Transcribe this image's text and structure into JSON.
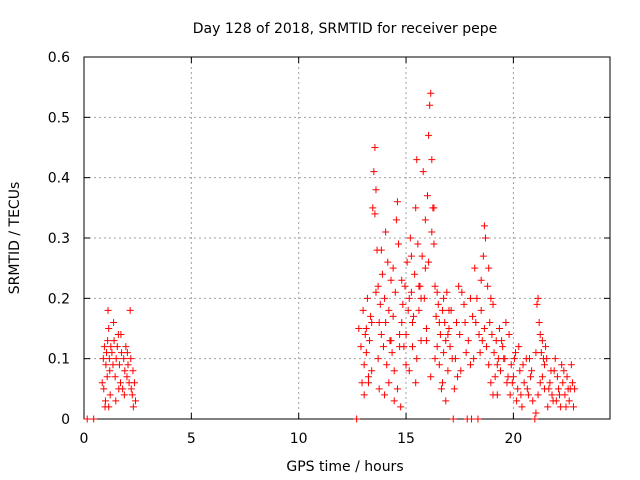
{
  "chart_data": {
    "type": "scatter",
    "title": "Day 128 of 2018, SRMTID for receiver pepe",
    "xlabel": "GPS time / hours",
    "ylabel": "SRMTID / TECUs",
    "xlim": [
      0,
      24.5
    ],
    "ylim": [
      0,
      0.6
    ],
    "xticks": [
      0,
      5,
      10,
      15,
      20
    ],
    "yticks": [
      0,
      0.1,
      0.2,
      0.3,
      0.4,
      0.5,
      0.6
    ],
    "xtick_labels": [
      "0",
      "5",
      "10",
      "15",
      "20"
    ],
    "ytick_labels": [
      "0",
      "0.1",
      "0.2",
      "0.3",
      "0.4",
      "0.5",
      "0.6"
    ],
    "grid": true,
    "marker": "+",
    "color": "#ff0000",
    "series": [
      {
        "name": "SRMTID",
        "points": [
          [
            0.15,
            0
          ],
          [
            0.45,
            0
          ],
          [
            0.85,
            0.06
          ],
          [
            0.9,
            0.1
          ],
          [
            0.95,
            0.12
          ],
          [
            1.0,
            0.03
          ],
          [
            1.02,
            0.09
          ],
          [
            1.05,
            0.11
          ],
          [
            1.08,
            0.07
          ],
          [
            1.1,
            0.13
          ],
          [
            1.12,
            0.18
          ],
          [
            1.15,
            0.15
          ],
          [
            1.18,
            0.1
          ],
          [
            1.2,
            0.08
          ],
          [
            1.25,
            0.12
          ],
          [
            1.3,
            0.11
          ],
          [
            1.35,
            0.09
          ],
          [
            1.4,
            0.13
          ],
          [
            1.45,
            0.07
          ],
          [
            1.5,
            0.1
          ],
          [
            1.55,
            0.12
          ],
          [
            1.6,
            0.14
          ],
          [
            1.65,
            0.09
          ],
          [
            1.7,
            0.06
          ],
          [
            1.75,
            0.11
          ],
          [
            1.8,
            0.05
          ],
          [
            1.85,
            0.1
          ],
          [
            1.9,
            0.08
          ],
          [
            1.95,
            0.12
          ],
          [
            2.0,
            0.07
          ],
          [
            2.05,
            0.09
          ],
          [
            2.1,
            0.06
          ],
          [
            2.15,
            0.18
          ],
          [
            2.2,
            0.05
          ],
          [
            2.25,
            0.04
          ],
          [
            2.3,
            0.02
          ],
          [
            2.35,
            0.06
          ],
          [
            2.4,
            0.03
          ],
          [
            0.92,
            0.05
          ],
          [
            1.22,
            0.04
          ],
          [
            1.62,
            0.05
          ],
          [
            1.88,
            0.04
          ],
          [
            2.02,
            0.11
          ],
          [
            2.18,
            0.1
          ],
          [
            2.28,
            0.08
          ],
          [
            1.38,
            0.16
          ],
          [
            1.72,
            0.14
          ],
          [
            1.48,
            0.03
          ],
          [
            0.98,
            0.02
          ],
          [
            1.15,
            0.02
          ],
          [
            12.7,
            0
          ],
          [
            12.8,
            0.15
          ],
          [
            12.9,
            0.12
          ],
          [
            13.0,
            0.18
          ],
          [
            13.05,
            0.09
          ],
          [
            13.1,
            0.14
          ],
          [
            13.15,
            0.11
          ],
          [
            13.2,
            0.2
          ],
          [
            13.25,
            0.06
          ],
          [
            13.3,
            0.13
          ],
          [
            13.35,
            0.17
          ],
          [
            13.4,
            0.08
          ],
          [
            13.45,
            0.35
          ],
          [
            13.5,
            0.41
          ],
          [
            13.55,
            0.45
          ],
          [
            13.6,
            0.38
          ],
          [
            13.65,
            0.28
          ],
          [
            13.7,
            0.22
          ],
          [
            13.75,
            0.16
          ],
          [
            13.8,
            0.19
          ],
          [
            13.85,
            0.14
          ],
          [
            13.9,
            0.24
          ],
          [
            13.95,
            0.12
          ],
          [
            14.0,
            0.2
          ],
          [
            14.05,
            0.16
          ],
          [
            14.1,
            0.09
          ],
          [
            14.15,
            0.26
          ],
          [
            14.2,
            0.18
          ],
          [
            14.25,
            0.13
          ],
          [
            14.3,
            0.23
          ],
          [
            14.35,
            0.11
          ],
          [
            14.4,
            0.17
          ],
          [
            14.45,
            0.08
          ],
          [
            14.5,
            0.21
          ],
          [
            14.55,
            0.33
          ],
          [
            14.6,
            0.36
          ],
          [
            14.65,
            0.29
          ],
          [
            14.7,
            0.14
          ],
          [
            14.75,
            0.02
          ],
          [
            14.8,
            0.16
          ],
          [
            14.85,
            0.19
          ],
          [
            14.9,
            0.12
          ],
          [
            14.95,
            0.22
          ],
          [
            15.0,
            0.14
          ],
          [
            15.05,
            0.26
          ],
          [
            15.1,
            0.18
          ],
          [
            15.15,
            0.08
          ],
          [
            15.2,
            0.3
          ],
          [
            15.25,
            0.21
          ],
          [
            15.3,
            0.12
          ],
          [
            15.35,
            0.17
          ],
          [
            15.4,
            0.24
          ],
          [
            15.45,
            0.35
          ],
          [
            15.5,
            0.43
          ],
          [
            15.55,
            0.29
          ],
          [
            15.6,
            0.18
          ],
          [
            15.65,
            0.22
          ],
          [
            15.7,
            0.13
          ],
          [
            15.75,
            0.27
          ],
          [
            15.8,
            0.41
          ],
          [
            15.85,
            0.2
          ],
          [
            15.9,
            0.33
          ],
          [
            15.95,
            0.15
          ],
          [
            16.0,
            0.37
          ],
          [
            16.05,
            0.47
          ],
          [
            16.1,
            0.52
          ],
          [
            16.15,
            0.54
          ],
          [
            16.2,
            0.43
          ],
          [
            16.25,
            0.35
          ],
          [
            16.3,
            0.29
          ],
          [
            16.35,
            0.22
          ],
          [
            16.4,
            0.17
          ],
          [
            16.45,
            0.12
          ],
          [
            16.5,
            0.19
          ],
          [
            16.55,
            0.09
          ],
          [
            16.6,
            0.14
          ],
          [
            16.65,
            0.05
          ],
          [
            16.7,
            0.18
          ],
          [
            16.75,
            0.11
          ],
          [
            16.8,
            0.16
          ],
          [
            16.85,
            0.13
          ],
          [
            16.9,
            0.21
          ],
          [
            16.95,
            0.08
          ],
          [
            17.0,
            0.15
          ],
          [
            17.05,
            0.12
          ],
          [
            17.1,
            0.18
          ],
          [
            17.2,
            0
          ],
          [
            17.3,
            0.1
          ],
          [
            17.4,
            0.07
          ],
          [
            17.5,
            0.14
          ],
          [
            17.6,
            0.21
          ],
          [
            17.7,
            0.19
          ],
          [
            17.8,
            0.11
          ],
          [
            17.85,
            0
          ],
          [
            17.9,
            0.13
          ],
          [
            18.0,
            0.09
          ],
          [
            18.05,
            0
          ],
          [
            18.1,
            0.17
          ],
          [
            18.2,
            0.25
          ],
          [
            18.3,
            0.2
          ],
          [
            18.35,
            0
          ],
          [
            18.4,
            0.14
          ],
          [
            18.5,
            0.18
          ],
          [
            18.6,
            0.27
          ],
          [
            18.65,
            0.32
          ],
          [
            18.7,
            0.3
          ],
          [
            18.75,
            0.12
          ],
          [
            18.8,
            0.22
          ],
          [
            18.85,
            0.09
          ],
          [
            18.9,
            0.16
          ],
          [
            18.95,
            0.06
          ],
          [
            19.0,
            0.14
          ],
          [
            19.05,
            0.19
          ],
          [
            19.1,
            0.11
          ],
          [
            19.15,
            0.07
          ],
          [
            19.2,
            0.13
          ],
          [
            19.25,
            0.04
          ],
          [
            19.3,
            0.1
          ],
          [
            19.35,
            0.15
          ],
          [
            19.4,
            0.08
          ],
          [
            19.5,
            0.12
          ],
          [
            19.6,
            0.1
          ],
          [
            19.7,
            0.06
          ],
          [
            19.8,
            0.14
          ],
          [
            19.9,
            0.09
          ],
          [
            20.0,
            0.07
          ],
          [
            20.1,
            0.11
          ],
          [
            20.2,
            0.05
          ],
          [
            20.3,
            0.08
          ],
          [
            20.4,
            0.02
          ],
          [
            20.5,
            0.06
          ],
          [
            20.6,
            0.1
          ],
          [
            20.7,
            0.04
          ],
          [
            20.8,
            0.07
          ],
          [
            20.9,
            0.03
          ],
          [
            21.0,
            0
          ],
          [
            21.05,
            0.01
          ],
          [
            21.1,
            0.19
          ],
          [
            21.15,
            0.2
          ],
          [
            21.2,
            0.16
          ],
          [
            21.25,
            0.14
          ],
          [
            21.3,
            0.11
          ],
          [
            21.35,
            0.07
          ],
          [
            21.4,
            0.1
          ],
          [
            21.45,
            0.05
          ],
          [
            21.5,
            0.12
          ],
          [
            21.6,
            0.02
          ],
          [
            21.7,
            0.06
          ],
          [
            21.8,
            0.04
          ],
          [
            21.9,
            0.08
          ],
          [
            21.95,
            0.1
          ],
          [
            22.0,
            0.03
          ],
          [
            22.1,
            0.05
          ],
          [
            22.2,
            0.02
          ],
          [
            22.3,
            0.06
          ],
          [
            22.4,
            0.04
          ],
          [
            22.5,
            0.07
          ],
          [
            22.6,
            0.03
          ],
          [
            22.7,
            0.09
          ],
          [
            22.75,
            0.06
          ],
          [
            22.8,
            0.02
          ],
          [
            22.85,
            0.05
          ],
          [
            13.25,
            0.07
          ],
          [
            13.4,
            0.16
          ],
          [
            13.55,
            0.34
          ],
          [
            13.7,
            0.1
          ],
          [
            13.85,
            0.28
          ],
          [
            14.05,
            0.31
          ],
          [
            14.2,
            0.06
          ],
          [
            14.4,
            0.25
          ],
          [
            14.6,
            0.05
          ],
          [
            14.8,
            0.23
          ],
          [
            15.0,
            0.09
          ],
          [
            15.15,
            0.2
          ],
          [
            15.3,
            0.16
          ],
          [
            15.5,
            0.1
          ],
          [
            15.7,
            0.2
          ],
          [
            15.9,
            0.25
          ],
          [
            16.05,
            0.26
          ],
          [
            16.2,
            0.31
          ],
          [
            16.35,
            0.1
          ],
          [
            16.55,
            0.16
          ],
          [
            16.75,
            0.2
          ],
          [
            16.95,
            0.14
          ],
          [
            17.15,
            0.1
          ],
          [
            17.35,
            0.16
          ],
          [
            17.55,
            0.08
          ],
          [
            17.75,
            0.16
          ],
          [
            18.0,
            0.2
          ],
          [
            18.15,
            0.1
          ],
          [
            18.45,
            0.11
          ],
          [
            18.65,
            0.15
          ],
          [
            18.85,
            0.25
          ],
          [
            19.05,
            0.04
          ],
          [
            19.25,
            0.09
          ],
          [
            19.45,
            0.13
          ],
          [
            19.65,
            0.16
          ],
          [
            19.85,
            0.04
          ],
          [
            20.05,
            0.1
          ],
          [
            20.25,
            0.12
          ],
          [
            20.45,
            0.09
          ],
          [
            20.65,
            0.05
          ],
          [
            20.85,
            0.08
          ],
          [
            21.05,
            0.11
          ],
          [
            21.25,
            0.06
          ],
          [
            21.45,
            0.09
          ],
          [
            21.65,
            0.05
          ],
          [
            21.85,
            0.03
          ],
          [
            22.05,
            0.07
          ],
          [
            22.25,
            0.09
          ],
          [
            22.45,
            0.02
          ],
          [
            22.65,
            0.05
          ],
          [
            12.95,
            0.06
          ],
          [
            13.15,
            0.15
          ],
          [
            13.6,
            0.21
          ],
          [
            14.0,
            0.04
          ],
          [
            14.3,
            0.13
          ],
          [
            14.7,
            0.12
          ],
          [
            15.25,
            0.27
          ],
          [
            15.6,
            0.22
          ],
          [
            15.95,
            0.13
          ],
          [
            16.3,
            0.35
          ],
          [
            16.45,
            0.21
          ],
          [
            16.7,
            0.06
          ],
          [
            17.0,
            0.18
          ],
          [
            17.45,
            0.22
          ],
          [
            18.25,
            0.16
          ],
          [
            18.55,
            0.13
          ],
          [
            18.95,
            0.2
          ],
          [
            19.55,
            0.1
          ],
          [
            20.15,
            0.03
          ],
          [
            20.75,
            0.1
          ],
          [
            21.35,
            0.13
          ],
          [
            21.75,
            0.08
          ],
          [
            22.15,
            0.04
          ],
          [
            22.55,
            0.05
          ],
          [
            13.05,
            0.04
          ],
          [
            15.45,
            0.06
          ],
          [
            16.85,
            0.03
          ],
          [
            18.5,
            0.23
          ],
          [
            19.75,
            0.07
          ],
          [
            20.35,
            0.04
          ],
          [
            21.55,
            0.1
          ],
          [
            22.35,
            0.08
          ],
          [
            13.75,
            0.05
          ],
          [
            14.45,
            0.03
          ],
          [
            16.15,
            0.07
          ],
          [
            17.25,
            0.05
          ],
          [
            19.95,
            0.06
          ],
          [
            21.15,
            0.04
          ]
        ]
      }
    ]
  }
}
